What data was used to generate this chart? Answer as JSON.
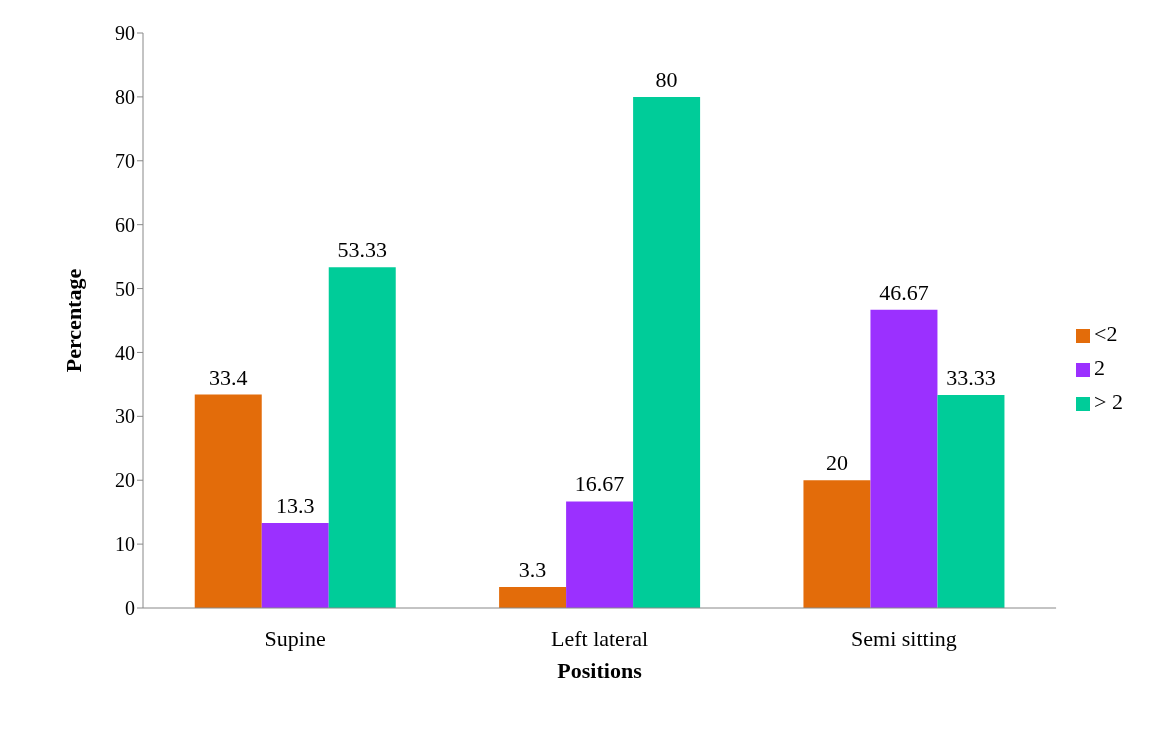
{
  "chart_data": {
    "type": "bar",
    "xlabel": "Positions",
    "ylabel": "Percentage",
    "categories": [
      "Supine",
      "Left lateral",
      "Semi sitting"
    ],
    "series": [
      {
        "name": "<2",
        "color": "#e36c0a",
        "values": [
          33.4,
          3.3,
          20
        ]
      },
      {
        "name": "2",
        "color": "#9b30ff",
        "values": [
          13.3,
          16.67,
          46.67
        ]
      },
      {
        "name": "> 2",
        "color": "#00cc99",
        "values": [
          53.33,
          80,
          33.33
        ]
      }
    ],
    "ylim": [
      0,
      90
    ],
    "yticks": [
      0,
      10,
      20,
      30,
      40,
      50,
      60,
      70,
      80,
      90
    ],
    "grid": false,
    "legend": "right",
    "data_labels": true
  }
}
